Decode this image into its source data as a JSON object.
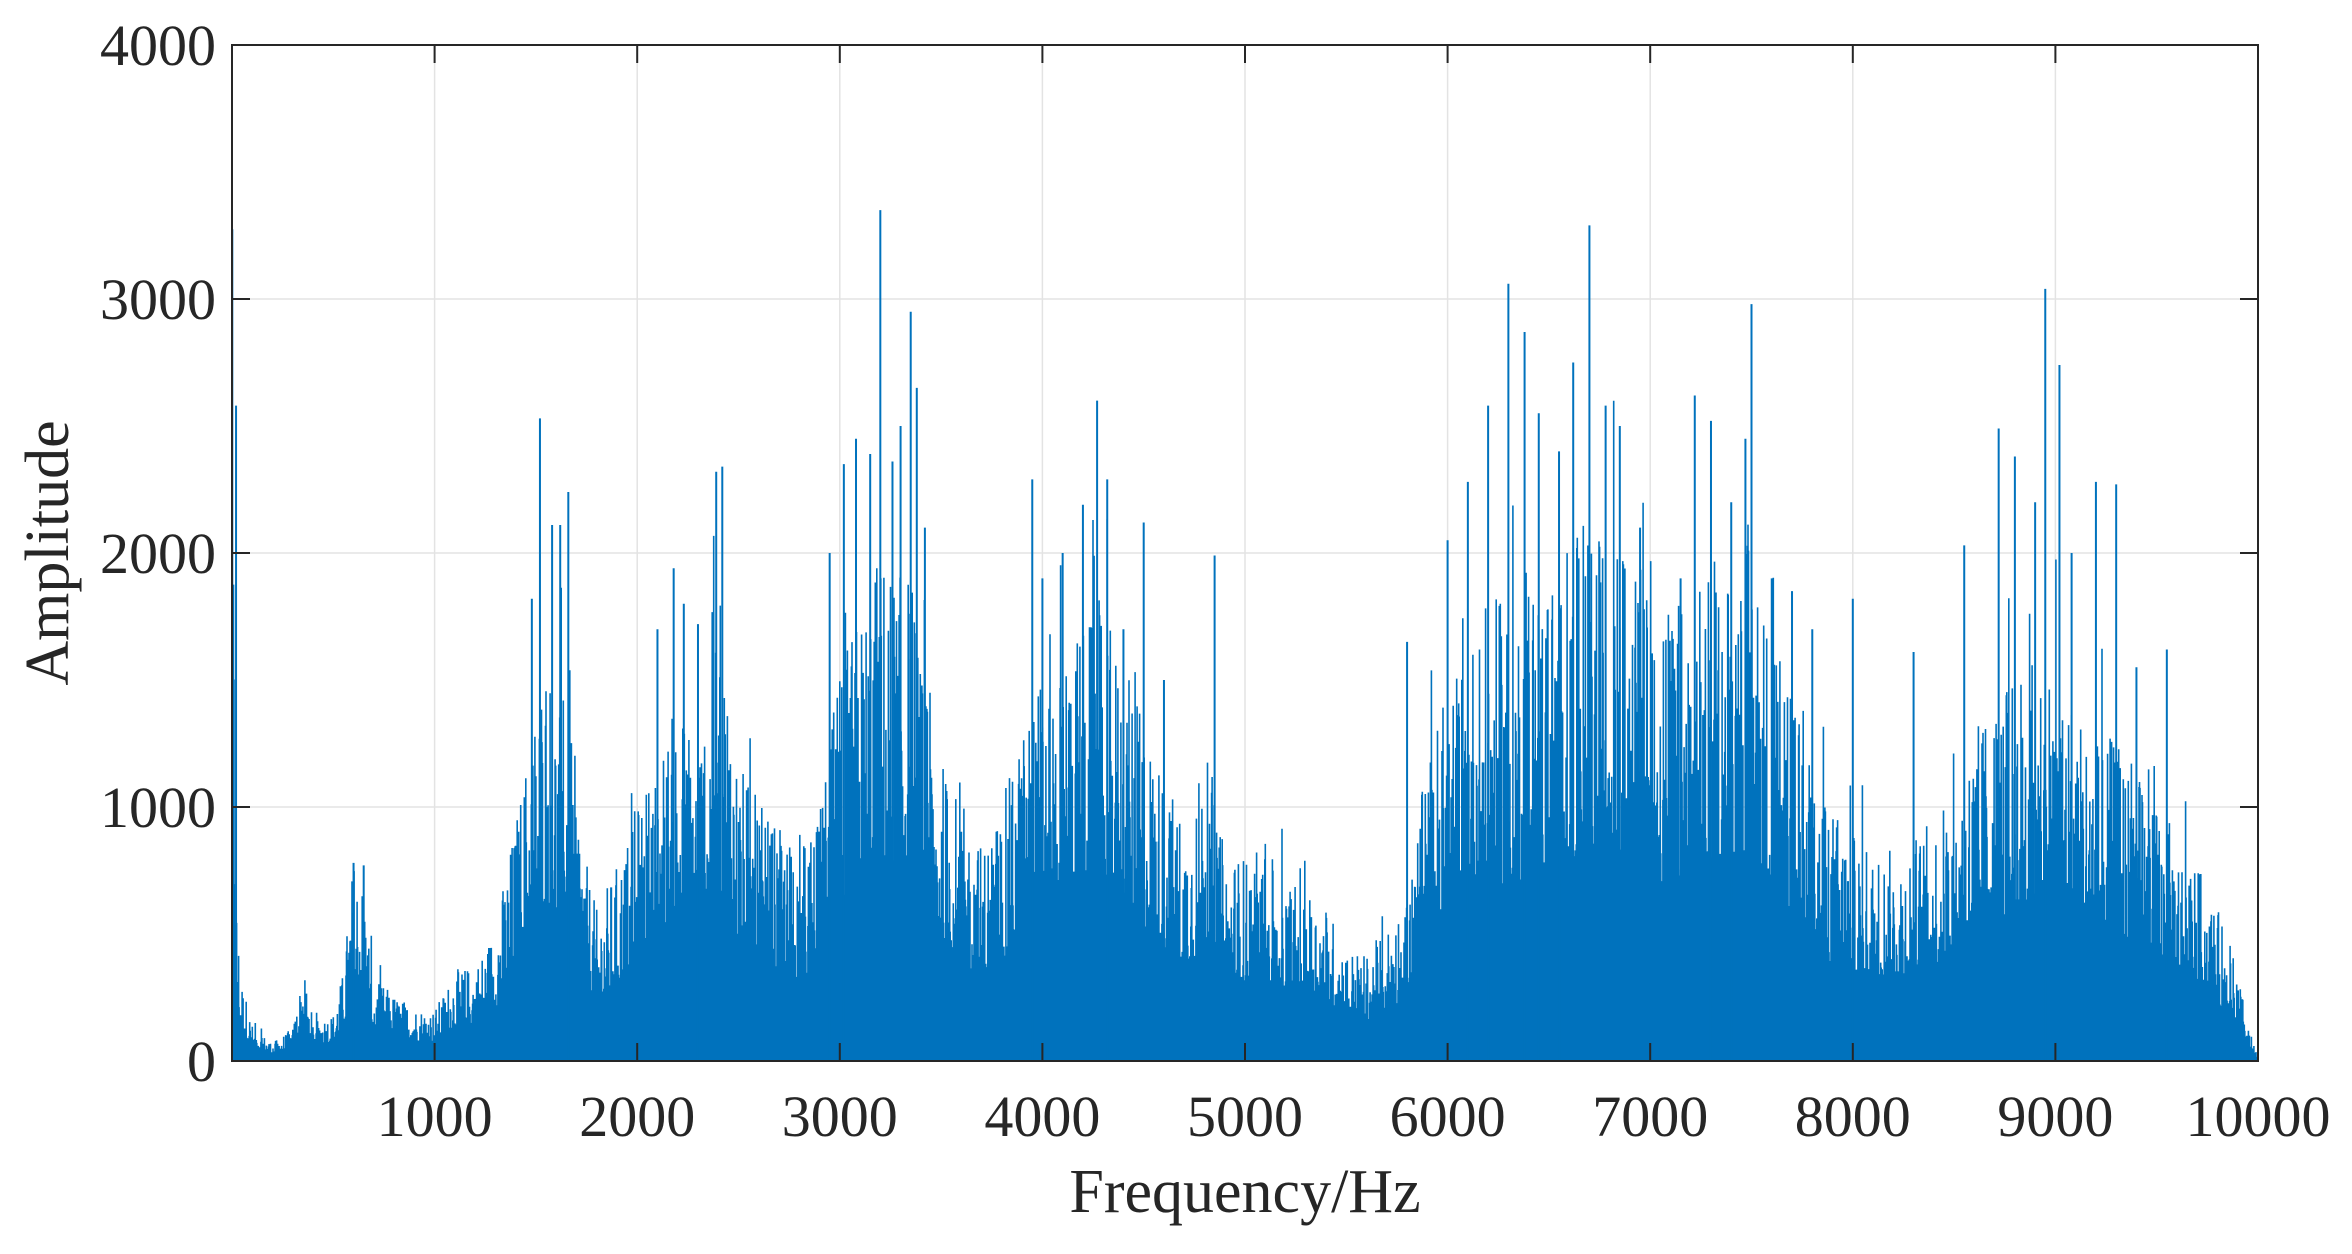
{
  "chart_data": {
    "type": "line",
    "title": "",
    "xlabel": "Frequency/Hz",
    "ylabel": "Amplitude",
    "xlim": [
      0,
      10000
    ],
    "ylim": [
      0,
      4000
    ],
    "xticks": [
      1000,
      2000,
      3000,
      4000,
      5000,
      6000,
      7000,
      8000,
      9000,
      10000
    ],
    "yticks": [
      0,
      1000,
      2000,
      3000,
      4000
    ],
    "grid": true,
    "legend": "none",
    "series": [
      {
        "color": "#0072BD",
        "envelope": {
          "x": [
            0,
            20,
            40,
            100,
            200,
            300,
            350,
            400,
            500,
            550,
            600,
            650,
            700,
            750,
            800,
            900,
            1000,
            1100,
            1200,
            1300,
            1400,
            1500,
            1550,
            1600,
            1650,
            1700,
            1750,
            1800,
            1900,
            2000,
            2100,
            2200,
            2300,
            2400,
            2450,
            2500,
            2600,
            2700,
            2800,
            2900,
            3000,
            3100,
            3200,
            3300,
            3350,
            3400,
            3500,
            3600,
            3700,
            3800,
            3900,
            4000,
            4100,
            4200,
            4300,
            4400,
            4500,
            4600,
            4700,
            4800,
            4850,
            4900,
            5000,
            5100,
            5200,
            5300,
            5400,
            5500,
            5600,
            5700,
            5800,
            5900,
            6000,
            6100,
            6200,
            6300,
            6400,
            6500,
            6600,
            6700,
            6800,
            6900,
            7000,
            7100,
            7200,
            7300,
            7400,
            7500,
            7600,
            7700,
            7800,
            7900,
            8000,
            8100,
            8200,
            8300,
            8400,
            8500,
            8600,
            8700,
            8800,
            8900,
            9000,
            9100,
            9200,
            9300,
            9400,
            9500,
            9600,
            9700,
            9800,
            9900,
            9950,
            10000
          ],
          "y": [
            2580,
            600,
            300,
            120,
            60,
            110,
            300,
            140,
            160,
            300,
            680,
            600,
            260,
            250,
            220,
            180,
            170,
            300,
            320,
            450,
            800,
            1200,
            1400,
            1200,
            1300,
            950,
            650,
            500,
            650,
            850,
            1000,
            1200,
            1100,
            1500,
            1300,
            1000,
            850,
            760,
            720,
            800,
            1300,
            1500,
            1700,
            1600,
            1650,
            1300,
            1000,
            850,
            720,
            850,
            1100,
            1300,
            1400,
            1450,
            1500,
            1300,
            1150,
            950,
            800,
            1000,
            850,
            700,
            680,
            700,
            600,
            580,
            520,
            380,
            350,
            450,
            550,
            1000,
            1250,
            1400,
            1500,
            1550,
            1600,
            1650,
            1700,
            1750,
            1750,
            1700,
            1600,
            1500,
            1550,
            1600,
            1700,
            1800,
            1400,
            1200,
            1000,
            850,
            750,
            700,
            700,
            750,
            800,
            900,
            1100,
            1200,
            1300,
            1350,
            1350,
            1200,
            1100,
            1050,
            950,
            850,
            750,
            650,
            500,
            300,
            120,
            10
          ]
        },
        "peaks": [
          {
            "x": 20,
            "y": 2580
          },
          {
            "x": 600,
            "y": 780
          },
          {
            "x": 650,
            "y": 770
          },
          {
            "x": 1480,
            "y": 1820
          },
          {
            "x": 1520,
            "y": 2530
          },
          {
            "x": 1580,
            "y": 2110
          },
          {
            "x": 1620,
            "y": 2110
          },
          {
            "x": 1660,
            "y": 2240
          },
          {
            "x": 2100,
            "y": 1700
          },
          {
            "x": 2180,
            "y": 1940
          },
          {
            "x": 2230,
            "y": 1800
          },
          {
            "x": 2300,
            "y": 1720
          },
          {
            "x": 2390,
            "y": 2320
          },
          {
            "x": 2420,
            "y": 2340
          },
          {
            "x": 2950,
            "y": 2000
          },
          {
            "x": 3020,
            "y": 2350
          },
          {
            "x": 3080,
            "y": 2450
          },
          {
            "x": 3150,
            "y": 2390
          },
          {
            "x": 3200,
            "y": 3350
          },
          {
            "x": 3260,
            "y": 2360
          },
          {
            "x": 3300,
            "y": 2500
          },
          {
            "x": 3350,
            "y": 2950
          },
          {
            "x": 3380,
            "y": 2650
          },
          {
            "x": 3420,
            "y": 2100
          },
          {
            "x": 3950,
            "y": 2290
          },
          {
            "x": 4000,
            "y": 1900
          },
          {
            "x": 4100,
            "y": 2000
          },
          {
            "x": 4200,
            "y": 2190
          },
          {
            "x": 4270,
            "y": 2600
          },
          {
            "x": 4320,
            "y": 2290
          },
          {
            "x": 4400,
            "y": 1700
          },
          {
            "x": 4500,
            "y": 2120
          },
          {
            "x": 4600,
            "y": 1500
          },
          {
            "x": 4850,
            "y": 1990
          },
          {
            "x": 5800,
            "y": 1650
          },
          {
            "x": 6000,
            "y": 2050
          },
          {
            "x": 6100,
            "y": 2280
          },
          {
            "x": 6200,
            "y": 2580
          },
          {
            "x": 6300,
            "y": 3060
          },
          {
            "x": 6380,
            "y": 2870
          },
          {
            "x": 6450,
            "y": 2550
          },
          {
            "x": 6550,
            "y": 2400
          },
          {
            "x": 6620,
            "y": 2750
          },
          {
            "x": 6700,
            "y": 3290
          },
          {
            "x": 6780,
            "y": 2580
          },
          {
            "x": 6850,
            "y": 2500
          },
          {
            "x": 6950,
            "y": 2100
          },
          {
            "x": 7150,
            "y": 1900
          },
          {
            "x": 7220,
            "y": 2620
          },
          {
            "x": 7300,
            "y": 2520
          },
          {
            "x": 7400,
            "y": 2200
          },
          {
            "x": 7470,
            "y": 2450
          },
          {
            "x": 7500,
            "y": 2980
          },
          {
            "x": 7600,
            "y": 1900
          },
          {
            "x": 7700,
            "y": 1850
          },
          {
            "x": 7800,
            "y": 1700
          },
          {
            "x": 8000,
            "y": 1820
          },
          {
            "x": 8300,
            "y": 1610
          },
          {
            "x": 8550,
            "y": 2030
          },
          {
            "x": 8720,
            "y": 2490
          },
          {
            "x": 8800,
            "y": 2380
          },
          {
            "x": 8900,
            "y": 2200
          },
          {
            "x": 8950,
            "y": 3040
          },
          {
            "x": 9020,
            "y": 2740
          },
          {
            "x": 9080,
            "y": 2000
          },
          {
            "x": 9200,
            "y": 2280
          },
          {
            "x": 9300,
            "y": 2270
          },
          {
            "x": 9400,
            "y": 1550
          },
          {
            "x": 9550,
            "y": 1620
          }
        ]
      }
    ]
  }
}
